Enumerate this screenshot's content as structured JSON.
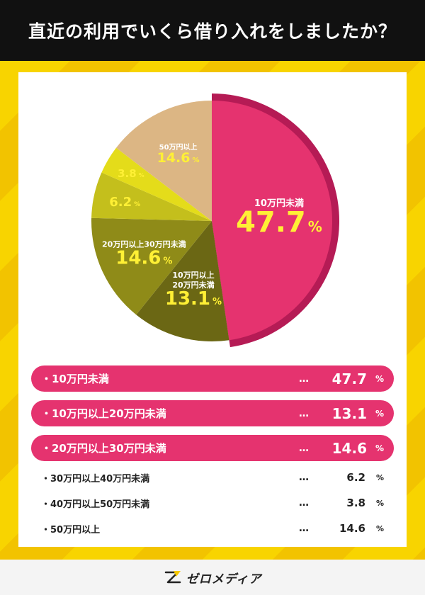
{
  "header": {
    "title": "直近の利用でいくら借り入れをしましたか？"
  },
  "chart_data": {
    "type": "pie",
    "unit": "%",
    "slices": [
      {
        "label": "10万円未満",
        "pie_label": "10万円未満",
        "value": 47.7,
        "color": "#e5336f"
      },
      {
        "label": "10万円以上20万円未満",
        "pie_label": "10万円以上\n20万円未満",
        "value": 13.1,
        "color": "#6b6714"
      },
      {
        "label": "20万円以上30万円未満",
        "pie_label": "20万円以上30万円未満",
        "value": 14.6,
        "color": "#8f8b18"
      },
      {
        "label": "30万円以上40万円未満",
        "pie_label": "",
        "value": 6.2,
        "color": "#c4bf1c"
      },
      {
        "label": "40万円以上50万円未満",
        "pie_label": "",
        "value": 3.8,
        "color": "#e4dc1a"
      },
      {
        "label": "50万円以上",
        "pie_label": "50万円以上",
        "value": 14.6,
        "color": "#dcb684"
      }
    ]
  },
  "legend": {
    "dots": "…",
    "items": [
      {
        "label": "・10万円未満",
        "value": "47.7",
        "unit": "%",
        "style": "pill"
      },
      {
        "label": "・10万円以上20万円未満",
        "value": "13.1",
        "unit": "%",
        "style": "pill"
      },
      {
        "label": "・20万円以上30万円未満",
        "value": "14.6",
        "unit": "%",
        "style": "pill"
      },
      {
        "label": "・30万円以上40万円未満",
        "value": "6.2",
        "unit": "%",
        "style": "plain"
      },
      {
        "label": "・40万円以上50万円未満",
        "value": "3.8",
        "unit": "%",
        "style": "plain"
      },
      {
        "label": "・50万円以上",
        "value": "14.6",
        "unit": "%",
        "style": "plain"
      }
    ]
  },
  "footer": {
    "logo_text": "ゼロメディア"
  },
  "colors": {
    "accent": "#e5336f",
    "highlight_text": "#fff035",
    "header_bg": "#111111",
    "background": "#f5c800"
  }
}
